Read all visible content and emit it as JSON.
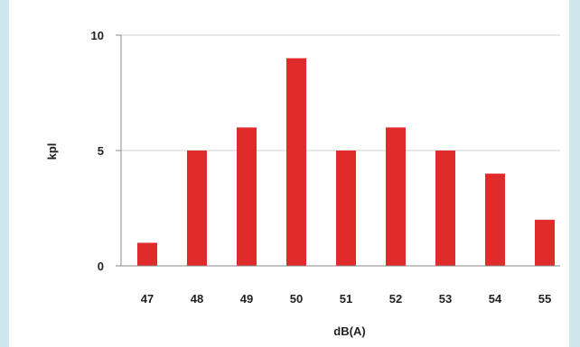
{
  "chart_data": {
    "type": "bar",
    "categories": [
      "47",
      "48",
      "49",
      "50",
      "51",
      "52",
      "53",
      "54",
      "55"
    ],
    "values": [
      1,
      5,
      6,
      9,
      5,
      6,
      5,
      4,
      2
    ],
    "title": "",
    "xlabel": "dB(A)",
    "ylabel": "kpl",
    "ylim": [
      0,
      10
    ],
    "yticks": [
      0,
      5,
      10
    ],
    "yticks_labels": [
      "0",
      "5",
      "10"
    ],
    "grid": true,
    "legend": "none",
    "bar_color": "#e02b2b",
    "grid_color": "#d0d0d0",
    "axis_color": "#888888"
  }
}
